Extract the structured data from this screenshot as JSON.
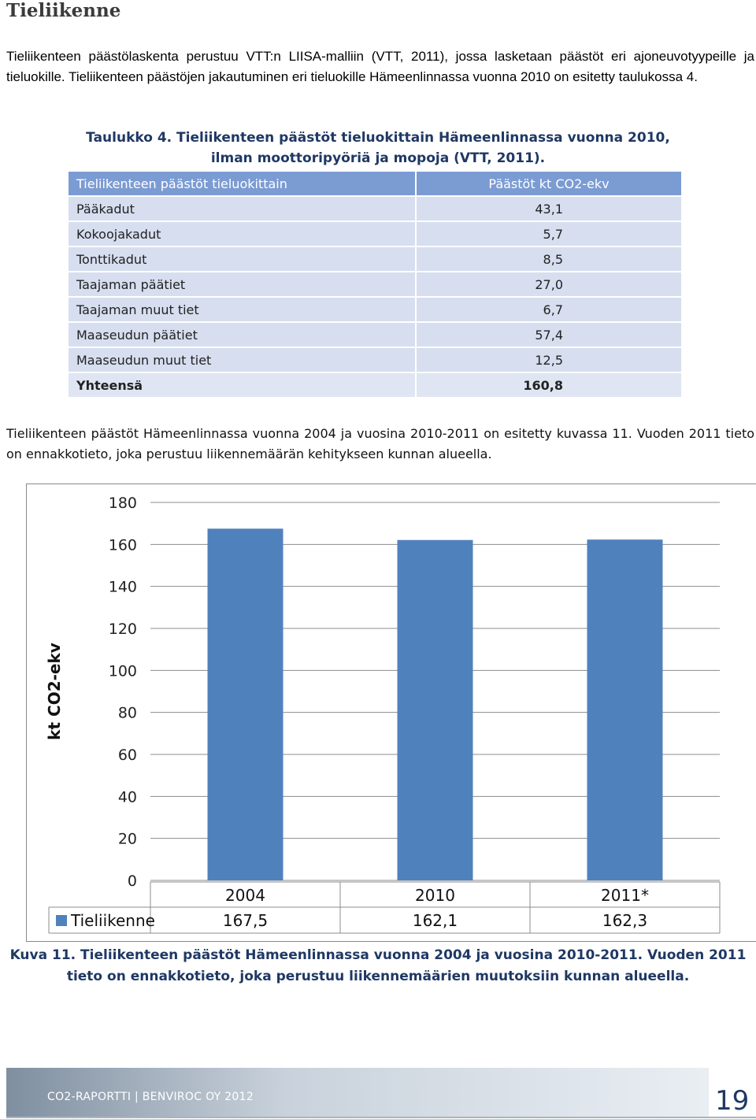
{
  "heading": "Tieliikenne",
  "para1": "Tieliikenteen päästölaskenta perustuu VTT:n LIISA-malliin (VTT, 2011), jossa lasketaan päästöt eri ajoneuvotyypeille ja tieluokille. Tieliikenteen päästöjen jakautuminen eri tieluokille Hämeenlinnassa vuonna 2010 on esitetty taulukossa 4.",
  "table_caption": "Taulukko 4. Tieliikenteen päästöt tieluokittain Hämeenlinnassa vuonna 2010, ilman moottoripyöriä ja mopoja (VTT, 2011).",
  "table": {
    "headers": [
      "Tieliikenteen päästöt tieluokittain",
      "Päästöt kt CO2-ekv"
    ],
    "rows": [
      [
        "Pääkadut",
        "43,1"
      ],
      [
        "Kokoojakadut",
        "5,7"
      ],
      [
        "Tonttikadut",
        "8,5"
      ],
      [
        "Taajaman päätiet",
        "27,0"
      ],
      [
        "Taajaman muut tiet",
        "6,7"
      ],
      [
        "Maaseudun päätiet",
        "57,4"
      ],
      [
        "Maaseudun muut tiet",
        "12,5"
      ]
    ],
    "total": [
      "Yhteensä",
      "160,8"
    ]
  },
  "para2": "Tieliikenteen päästöt Hämeenlinnassa vuonna 2004 ja vuosina 2010-2011 on esitetty kuvassa 11. Vuoden 2011 tieto on ennakkotieto, joka perustuu liikennemäärän kehitykseen kunnan alueella.",
  "chart_data": {
    "type": "bar",
    "categories": [
      "2004",
      "2010",
      "2011*"
    ],
    "series": [
      {
        "name": "Tieliikenne",
        "values": [
          167.5,
          162.1,
          162.3
        ],
        "value_labels": [
          "167,5",
          "162,1",
          "162,3"
        ]
      }
    ],
    "ylabel": "kt CO2-ekv",
    "ylim": [
      0,
      180
    ],
    "yticks": [
      0,
      20,
      40,
      60,
      80,
      100,
      120,
      140,
      160,
      180
    ],
    "grid": true,
    "data_table": true,
    "bar_color": "#4f81bd"
  },
  "figure_caption": "Kuva 11. Tieliikenteen päästöt Hämeenlinnassa vuonna 2004 ja vuosina 2010-2011. Vuoden 2011 tieto on ennakkotieto, joka perustuu liikennemäärien muutoksiin kunnan alueella.",
  "footer": {
    "text": "CO2-RAPORTTI | BENVIROC OY 2012",
    "page": "19"
  }
}
